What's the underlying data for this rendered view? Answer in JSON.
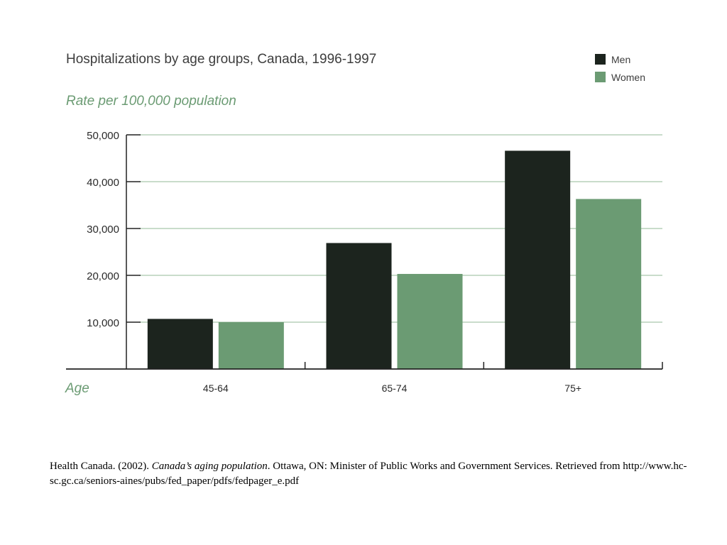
{
  "colors": {
    "men": "#1c241e",
    "women": "#6b9b73",
    "axis": "#222222",
    "grid": "#a9c8ac",
    "accent_text": "#6b9b73"
  },
  "chart_data": {
    "type": "bar",
    "title": "Hospitalizations by age groups, Canada, 1996-1997",
    "subtitle": "Rate per 100,000 population",
    "xlabel": "Age",
    "ylabel": "",
    "categories": [
      "45-64",
      "65-74",
      "75+"
    ],
    "series": [
      {
        "name": "Men",
        "color": "#1c241e",
        "values": [
          10700,
          26900,
          46600
        ]
      },
      {
        "name": "Women",
        "color": "#6b9b73",
        "values": [
          10000,
          20300,
          36300
        ]
      }
    ],
    "ylim": [
      0,
      50000
    ],
    "yticks": [
      10000,
      20000,
      30000,
      40000,
      50000
    ],
    "ytick_labels": [
      "10,000",
      "20,000",
      "30,000",
      "40,000",
      "50,000"
    ],
    "grid": true,
    "legend": "top-right"
  },
  "citation": {
    "part1": "Health Canada. (2002). ",
    "title": "Canada’s aging population",
    "part2": ". Ottawa, ON: Minister of Public Works and Government Services.  Retrieved from http://www.hc-sc.gc.ca/seniors-aines/pubs/fed_paper/pdfs/fedpager_e.pdf"
  }
}
